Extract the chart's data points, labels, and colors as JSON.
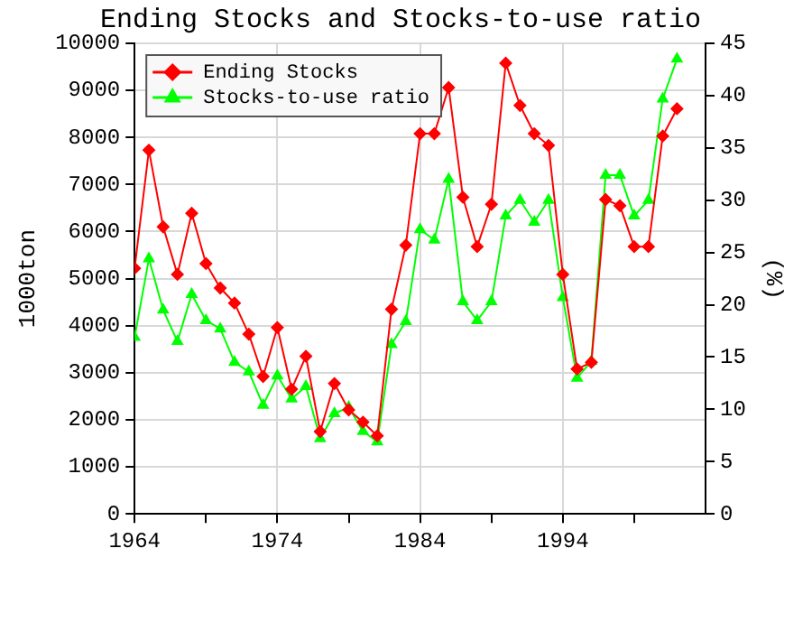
{
  "chart_data": {
    "type": "line",
    "title": "Ending Stocks and Stocks-to-use ratio",
    "ylabel": "1000ton",
    "y2label": "(%)",
    "x": [
      1964,
      1965,
      1966,
      1967,
      1968,
      1969,
      1970,
      1971,
      1972,
      1973,
      1974,
      1975,
      1976,
      1977,
      1978,
      1979,
      1980,
      1981,
      1982,
      1983,
      1984,
      1985,
      1986,
      1987,
      1988,
      1989,
      1990,
      1991,
      1992,
      1993,
      1994,
      1995,
      1996,
      1997,
      1998,
      1999,
      2000,
      2001,
      2002
    ],
    "series": [
      {
        "name": "Ending Stocks",
        "color": "#ff0000",
        "marker": "diamond",
        "values": [
          5220,
          7730,
          6100,
          5090,
          6390,
          5320,
          4800,
          4480,
          3820,
          2920,
          3960,
          2650,
          3350,
          1750,
          2770,
          2210,
          1950,
          1660,
          4350,
          5710,
          8080,
          8080,
          9060,
          6730,
          5680,
          6580,
          9580,
          8680,
          8080,
          7830,
          5090,
          3080,
          3220,
          6680,
          6550,
          5680,
          5680,
          8030,
          8610
        ]
      },
      {
        "name": "Stocks-to-use ratio",
        "color": "#00ff00",
        "marker": "triangle",
        "axis": "y2",
        "values": [
          16.9,
          24.4,
          19.5,
          16.5,
          21.0,
          18.5,
          17.7,
          14.5,
          13.6,
          10.4,
          13.2,
          11.0,
          12.2,
          7.2,
          9.6,
          10.2,
          7.9,
          6.9,
          16.2,
          18.4,
          27.2,
          26.2,
          32.0,
          20.3,
          18.5,
          20.3,
          28.5,
          30.0,
          27.9,
          30.0,
          20.7,
          13.0,
          14.6,
          32.4,
          32.4,
          28.5,
          30.0,
          39.7,
          43.5
        ]
      }
    ],
    "xlim": [
      1964,
      2004
    ],
    "xticks": [
      1964,
      {
        "value": 1969,
        "label": null
      },
      1974,
      {
        "value": 1979,
        "label": null
      },
      1984,
      {
        "value": 1989,
        "label": null
      },
      1994,
      {
        "value": 1999,
        "label": null
      }
    ],
    "ylim": [
      0,
      10000
    ],
    "yticks": [
      0,
      1000,
      2000,
      3000,
      4000,
      5000,
      6000,
      7000,
      8000,
      9000,
      10000
    ],
    "y2lim": [
      0,
      45
    ],
    "y2ticks": [
      0,
      5,
      10,
      15,
      20,
      25,
      30,
      35,
      40,
      45
    ],
    "grid": true,
    "legend": "top left",
    "line_style": "solid"
  }
}
